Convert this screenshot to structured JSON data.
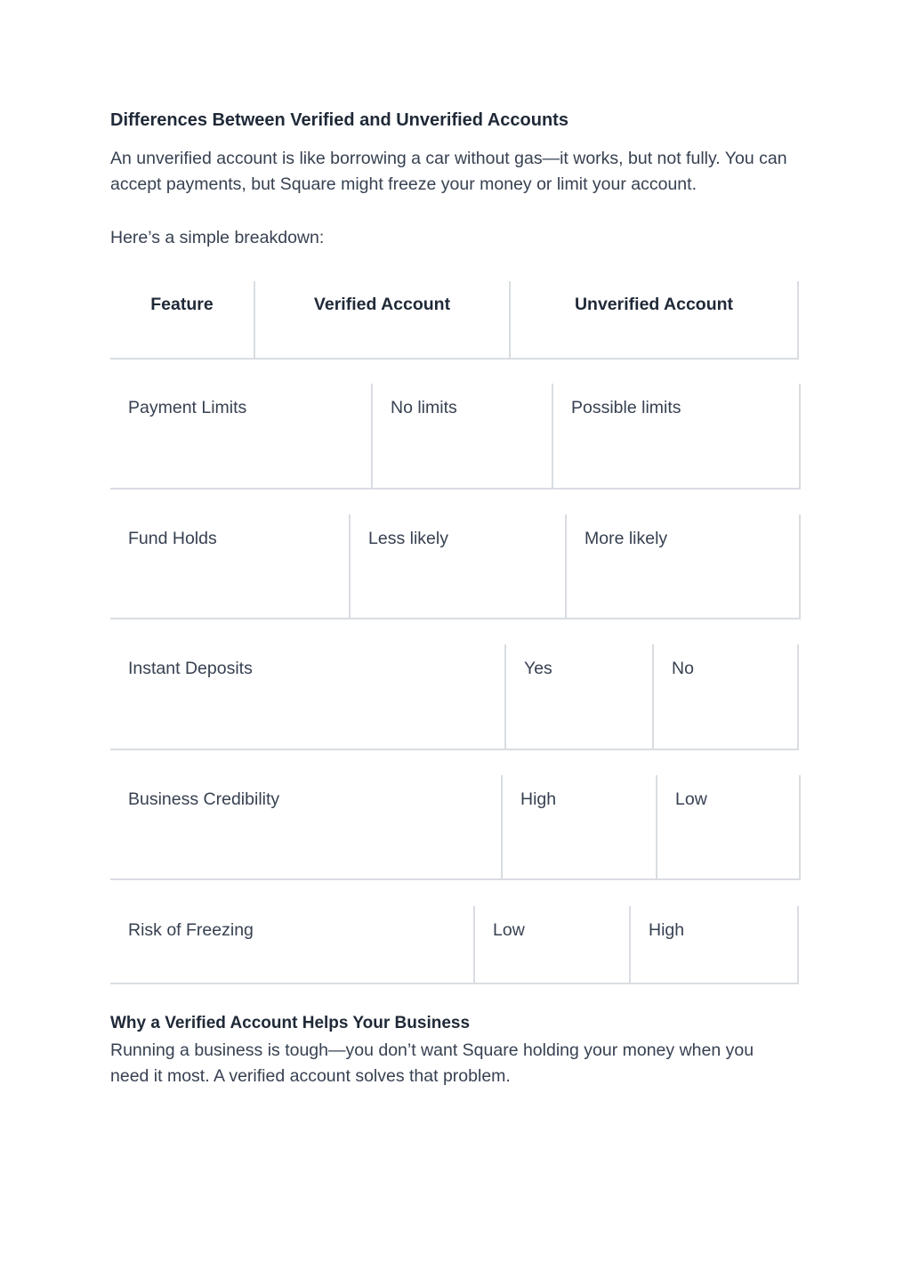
{
  "heading": "Differences Between Verified and Unverified Accounts",
  "intro": "An unverified account is like borrowing a car without gas—it works, but not fully. You can accept payments, but Square might freeze your money or limit your account.",
  "lead": "Here’s a simple breakdown:",
  "table": {
    "headers": [
      "Feature",
      "Verified Account",
      "Unverified Account"
    ],
    "rows": [
      [
        "Payment Limits",
        "No limits",
        "Possible limits"
      ],
      [
        "Fund Holds",
        "Less likely",
        "More likely"
      ],
      [
        "Instant Deposits",
        "Yes",
        "No"
      ],
      [
        "Business Credibility",
        "High",
        "Low"
      ],
      [
        "Risk of Freezing",
        "Low",
        "High"
      ]
    ]
  },
  "section2": {
    "heading": "Why a Verified Account Helps Your Business",
    "body": "Running a business is tough—you don’t want Square holding your money when you need it most. A verified account solves that problem."
  }
}
